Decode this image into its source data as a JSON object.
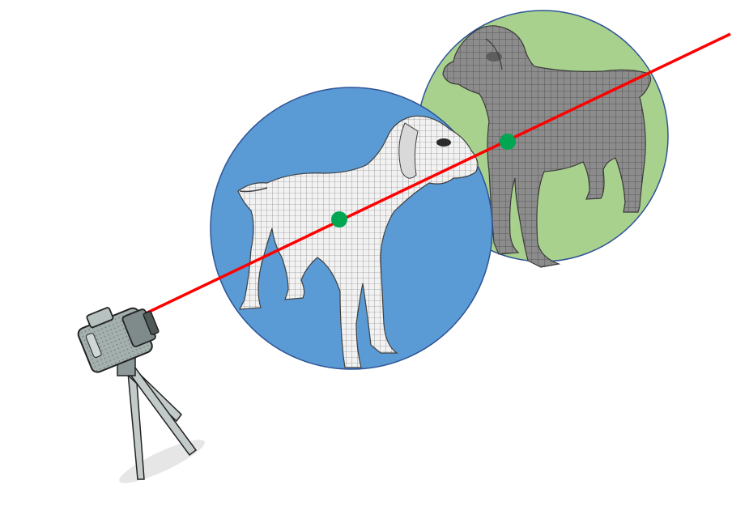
{
  "diagram": {
    "colors": {
      "background": "#ffffff",
      "front_circle": "#5b9bd5",
      "back_circle": "#a9d18e",
      "circle_stroke": "#2f5496",
      "ray": "#ff0000",
      "intersection_point": "#00a651",
      "front_dog_mesh": "#f0f0f0",
      "back_dog_mesh": "#8c8c8c",
      "camera_body": "#9aa7a5"
    },
    "icons": {
      "camera": "camera-on-tripod-icon",
      "front_dog": "white-mesh-dog-icon",
      "back_dog": "gray-mesh-dog-icon"
    }
  }
}
